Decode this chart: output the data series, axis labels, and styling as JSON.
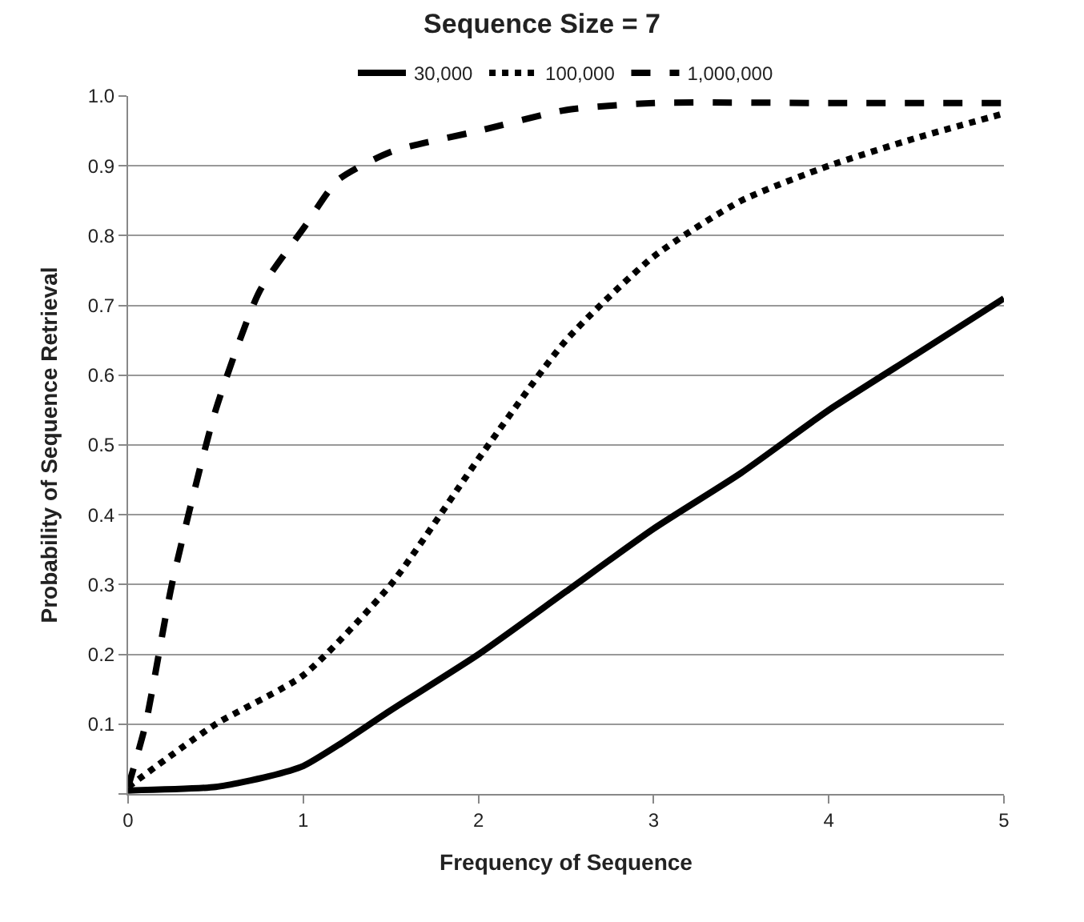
{
  "chart_data": {
    "type": "line",
    "title": "Sequence Size = 7",
    "xlabel": "Frequency of Sequence",
    "ylabel": "Probability of Sequence Retrieval",
    "xlim": [
      0,
      5
    ],
    "xticks": [
      {
        "value": 0,
        "label": "0"
      },
      1,
      2,
      3,
      4,
      5
    ],
    "ylim": [
      0,
      1
    ],
    "yticks": [
      {
        "value": 0,
        "label": null
      },
      0.1,
      0.2,
      0.3,
      0.4,
      0.5,
      0.6,
      0.7,
      0.8,
      0.9,
      {
        "value": 1,
        "label": "1.0"
      }
    ],
    "grid": "y",
    "legend": "top",
    "marker": "none",
    "series": [
      {
        "name": "30,000",
        "color": "#000000",
        "line_style": "solid",
        "x": [
          0,
          0.5,
          0.8,
          1,
          1.2,
          1.5,
          2,
          2.5,
          3,
          3.5,
          4,
          4.5,
          5
        ],
        "values": [
          0.005,
          0.01,
          0.025,
          0.04,
          0.07,
          0.12,
          0.2,
          0.29,
          0.38,
          0.46,
          0.55,
          0.63,
          0.71
        ]
      },
      {
        "name": "100,000",
        "color": "#000000",
        "line_style": "dotted",
        "x": [
          0,
          0.5,
          1,
          1.5,
          2,
          2.5,
          3,
          3.5,
          4,
          4.5,
          5
        ],
        "values": [
          0.01,
          0.1,
          0.17,
          0.3,
          0.48,
          0.65,
          0.77,
          0.85,
          0.9,
          0.94,
          0.975
        ]
      },
      {
        "name": "1,000,000",
        "color": "#000000",
        "line_style": "dashed",
        "x": [
          0,
          0.1,
          0.25,
          0.5,
          0.75,
          1,
          1.2,
          1.5,
          2,
          2.5,
          3,
          4,
          5
        ],
        "values": [
          0.01,
          0.1,
          0.3,
          0.55,
          0.72,
          0.81,
          0.88,
          0.92,
          0.95,
          0.98,
          0.99,
          0.99,
          0.99
        ]
      }
    ]
  }
}
